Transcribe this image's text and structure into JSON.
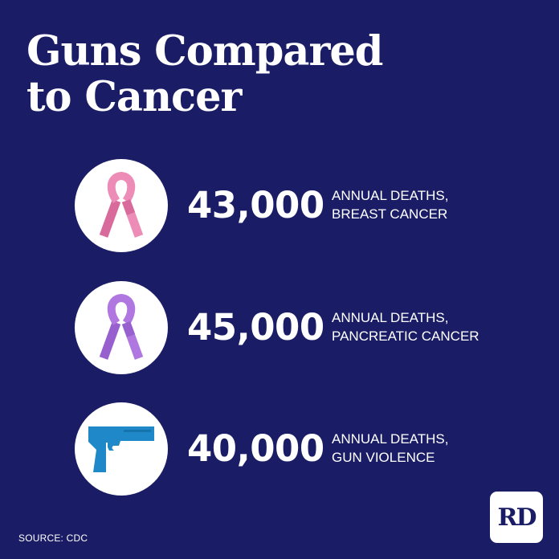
{
  "title": {
    "line1": "Guns Compared",
    "line2": "to Cancer"
  },
  "rows": [
    {
      "icon": "pink-ribbon-icon",
      "color": "#ee8cb8",
      "value": "43,000",
      "label_line1": "ANNUAL DEATHS,",
      "label_line2": "BREAST CANCER"
    },
    {
      "icon": "purple-ribbon-icon",
      "color": "#b177e0",
      "value": "45,000",
      "label_line1": "ANNUAL DEATHS,",
      "label_line2": "PANCREATIC CANCER"
    },
    {
      "icon": "handgun-icon",
      "color": "#1e88c8",
      "value": "40,000",
      "label_line1": "ANNUAL DEATHS,",
      "label_line2": "GUN VIOLENCE"
    }
  ],
  "source": "SOURCE: CDC",
  "logo": "RD",
  "colors": {
    "background": "#1a1d66",
    "text": "#ffffff"
  }
}
